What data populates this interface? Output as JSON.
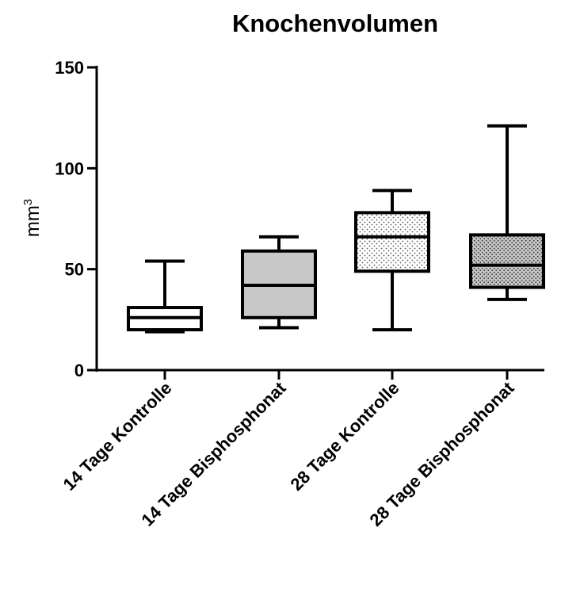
{
  "chart_data": {
    "type": "boxplot",
    "title": "Knochenvolumen",
    "ylabel": "mm",
    "ylabel_superscript": "3",
    "xlabel": "",
    "ylim": [
      0,
      150
    ],
    "yticks": [
      0,
      50,
      100,
      150
    ],
    "categories": [
      "14 Tage Kontrolle",
      "14 Tage Bisphosphonat",
      "28 Tage Kontrolle",
      "28 Tage Bisphosphonat"
    ],
    "boxes": [
      {
        "min": 19,
        "q1": 20,
        "median": 26,
        "q3": 31,
        "max": 54,
        "fill": "#ffffff",
        "pattern": "none"
      },
      {
        "min": 21,
        "q1": 26,
        "median": 42,
        "q3": 59,
        "max": 66,
        "fill": "#c8c8c8",
        "pattern": "none"
      },
      {
        "min": 20,
        "q1": 49,
        "median": 66,
        "q3": 78,
        "max": 89,
        "fill": "#ffffff",
        "pattern": "sparse-dots"
      },
      {
        "min": 35,
        "q1": 41,
        "median": 52,
        "q3": 67,
        "max": 121,
        "fill": "#c8c8c8",
        "pattern": "dense-dots"
      }
    ],
    "grid": false,
    "legend": "none"
  }
}
